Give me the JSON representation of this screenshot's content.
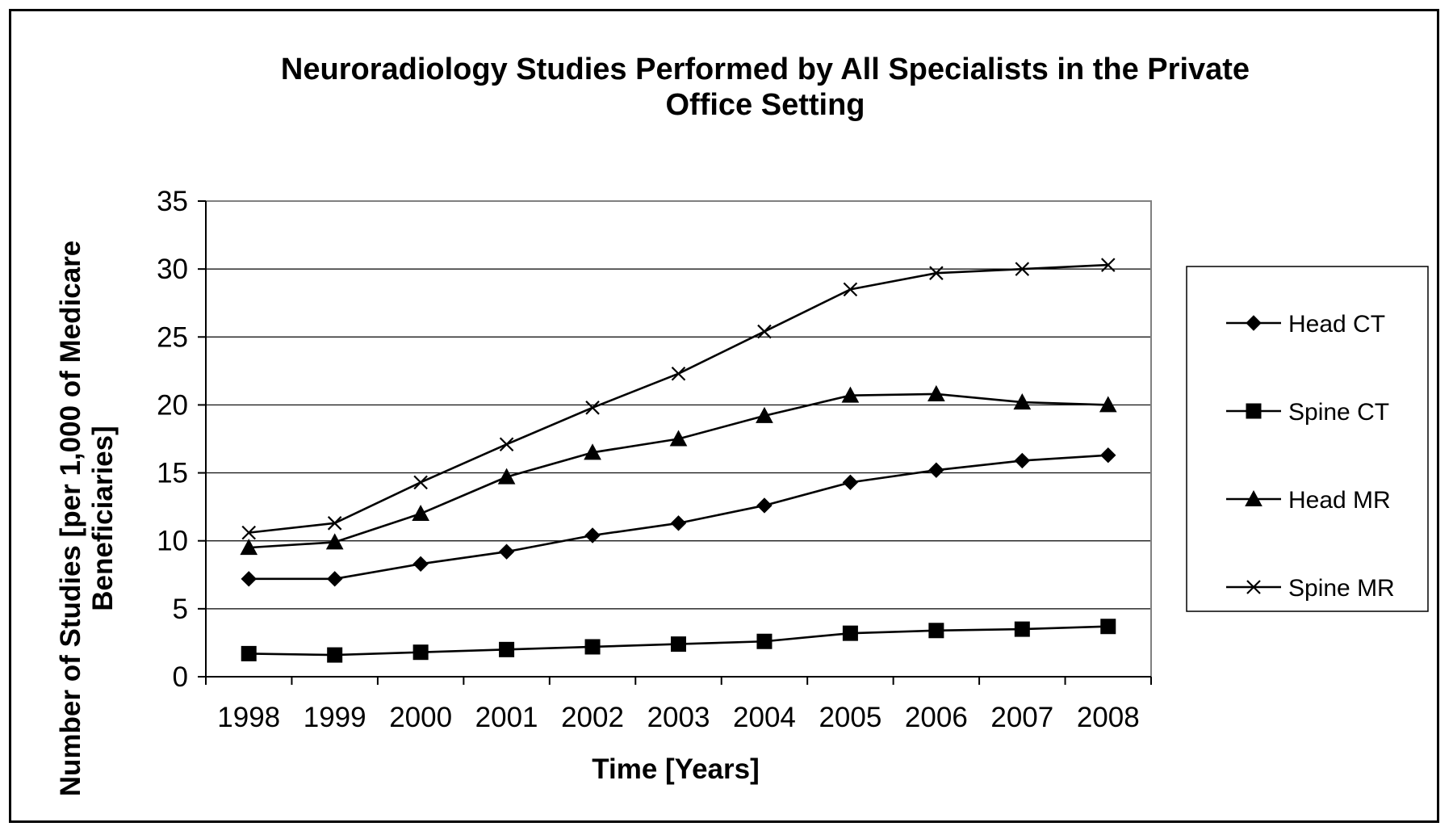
{
  "chart_data": {
    "type": "line",
    "title_lines": [
      "Neuroradiology Studies Performed by All Specialists in the Private",
      "Office Setting"
    ],
    "xlabel": "Time [Years]",
    "ylabel_lines": [
      "Number of Studies [per 1,000 of Medicare",
      "Beneficiaries]"
    ],
    "x": [
      "1998",
      "1999",
      "2000",
      "2001",
      "2002",
      "2003",
      "2004",
      "2005",
      "2006",
      "2007",
      "2008"
    ],
    "ylim": [
      0,
      35
    ],
    "yticks": [
      0,
      5,
      10,
      15,
      20,
      25,
      30,
      35
    ],
    "grid": "horizontal",
    "legend_position": "right",
    "series": [
      {
        "name": "Head CT",
        "marker": "diamond",
        "values": [
          7.2,
          7.2,
          8.3,
          9.2,
          10.4,
          11.3,
          12.6,
          14.3,
          15.2,
          15.9,
          16.3
        ]
      },
      {
        "name": "Spine CT",
        "marker": "square",
        "values": [
          1.7,
          1.6,
          1.8,
          2.0,
          2.2,
          2.4,
          2.6,
          3.2,
          3.4,
          3.5,
          3.7
        ]
      },
      {
        "name": "Head MR",
        "marker": "triangle",
        "values": [
          9.5,
          9.9,
          12.0,
          14.7,
          16.5,
          17.5,
          19.2,
          20.7,
          20.8,
          20.2,
          20.0
        ]
      },
      {
        "name": "Spine MR",
        "marker": "x",
        "values": [
          10.6,
          11.3,
          14.3,
          17.1,
          19.8,
          22.3,
          25.4,
          28.5,
          29.7,
          30.0,
          30.3
        ]
      }
    ],
    "colors": {
      "line": "#000000",
      "grid": "#000000",
      "plot_border": "#808080",
      "background": "#ffffff"
    }
  }
}
